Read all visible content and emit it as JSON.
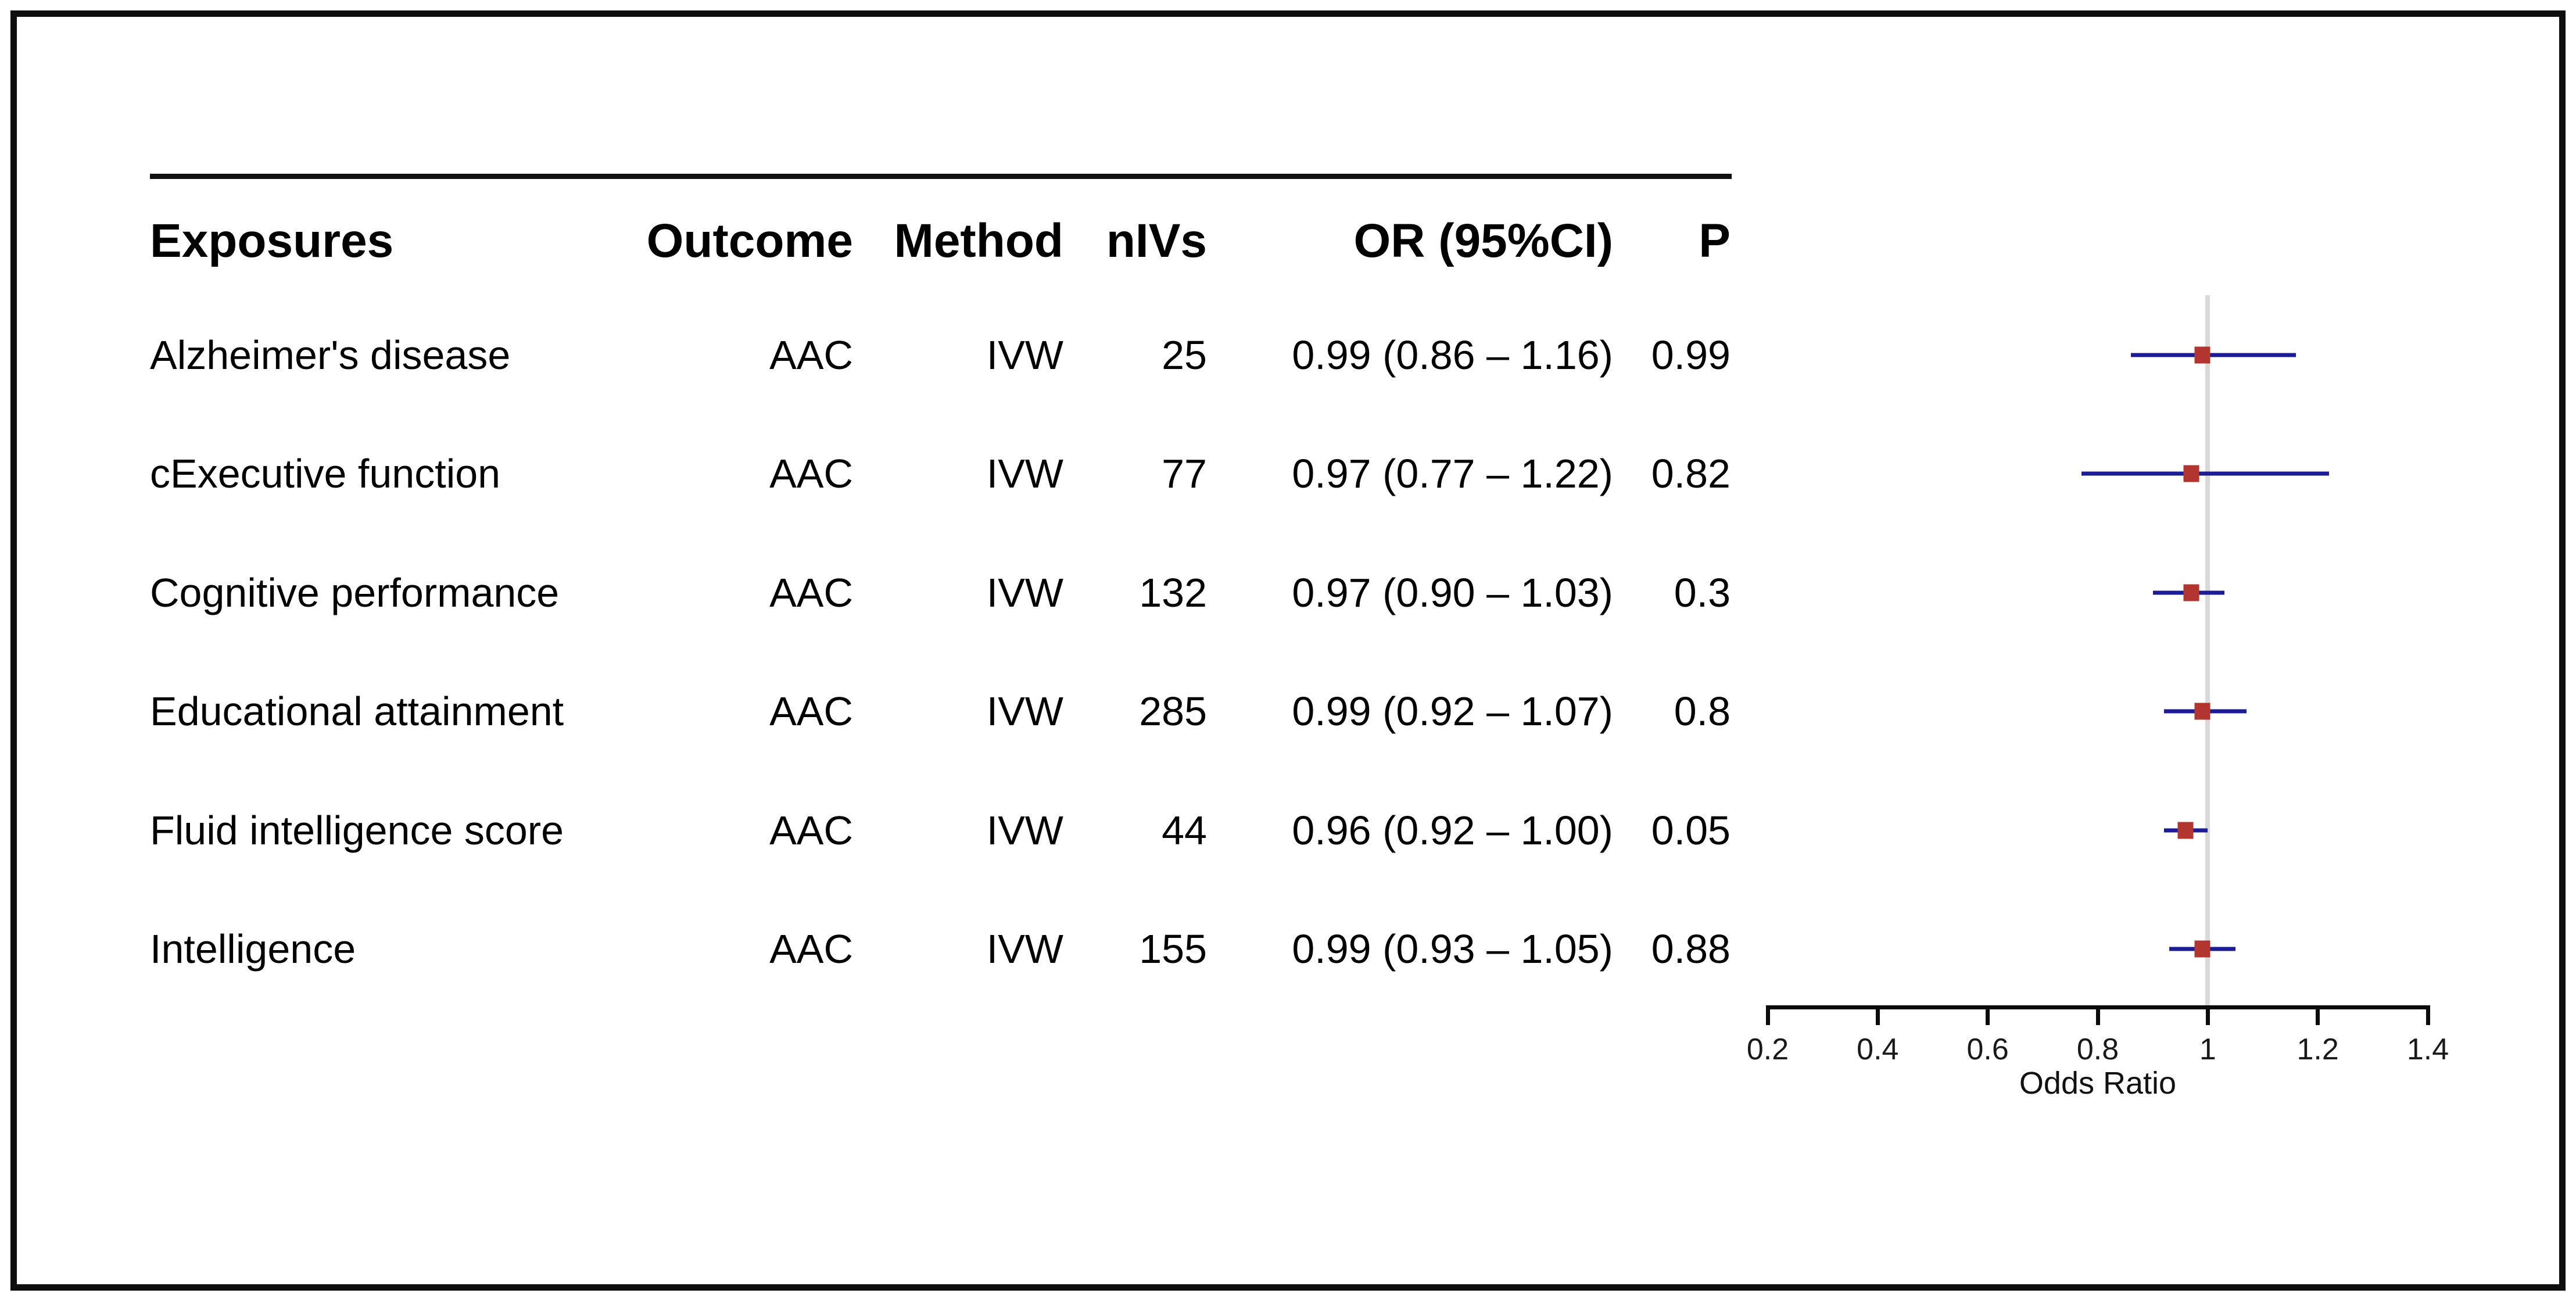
{
  "figure": {
    "border_color": "#0e0e0e",
    "background": "#ffffff"
  },
  "table": {
    "columns": [
      {
        "id": "exposures",
        "label": "Exposures"
      },
      {
        "id": "outcome",
        "label": "Outcome"
      },
      {
        "id": "method",
        "label": "Method"
      },
      {
        "id": "nivs",
        "label": "nIVs"
      },
      {
        "id": "or_ci",
        "label": "OR (95%CI)"
      },
      {
        "id": "p",
        "label": "P"
      }
    ],
    "rows": [
      {
        "exposures": "Alzheimer's disease",
        "outcome": "AAC",
        "method": "IVW",
        "nivs": "25",
        "or_ci": "0.99 (0.86 – 1.16)",
        "p": "0.99"
      },
      {
        "exposures": "cExecutive function",
        "outcome": "AAC",
        "method": "IVW",
        "nivs": "77",
        "or_ci": "0.97 (0.77 – 1.22)",
        "p": "0.82"
      },
      {
        "exposures": "Cognitive performance",
        "outcome": "AAC",
        "method": "IVW",
        "nivs": "132",
        "or_ci": "0.97 (0.90 – 1.03)",
        "p": "0.3"
      },
      {
        "exposures": "Educational attainment",
        "outcome": "AAC",
        "method": "IVW",
        "nivs": "285",
        "or_ci": "0.99 (0.92 – 1.07)",
        "p": "0.8"
      },
      {
        "exposures": "Fluid intelligence score",
        "outcome": "AAC",
        "method": "IVW",
        "nivs": "44",
        "or_ci": "0.96 (0.92 – 1.00)",
        "p": "0.05"
      },
      {
        "exposures": "Intelligence",
        "outcome": "AAC",
        "method": "IVW",
        "nivs": "155",
        "or_ci": "0.99 (0.93 – 1.05)",
        "p": "0.88"
      }
    ]
  },
  "chart_data": {
    "type": "forest",
    "xlabel": "Odds Ratio",
    "xlim": [
      0.2,
      1.4
    ],
    "x_ticks": [
      0.2,
      0.4,
      0.6,
      0.8,
      1,
      1.2,
      1.4
    ],
    "reference_line": 1,
    "grid": false,
    "points": [
      {
        "label": "Alzheimer's disease",
        "or": 0.99,
        "ci_low": 0.86,
        "ci_high": 1.16
      },
      {
        "label": "cExecutive function",
        "or": 0.97,
        "ci_low": 0.77,
        "ci_high": 1.22
      },
      {
        "label": "Cognitive performance",
        "or": 0.97,
        "ci_low": 0.9,
        "ci_high": 1.03
      },
      {
        "label": "Educational attainment",
        "or": 0.99,
        "ci_low": 0.92,
        "ci_high": 1.07
      },
      {
        "label": "Fluid intelligence score",
        "or": 0.96,
        "ci_low": 0.92,
        "ci_high": 1.0
      },
      {
        "label": "Intelligence",
        "or": 0.99,
        "ci_low": 0.93,
        "ci_high": 1.05
      }
    ],
    "colors": {
      "marker": "#b23530",
      "ci_line": "#1c1c96",
      "reference_line": "#d9d9d9",
      "axis": "#0b0b0b",
      "text": "#000000"
    }
  }
}
